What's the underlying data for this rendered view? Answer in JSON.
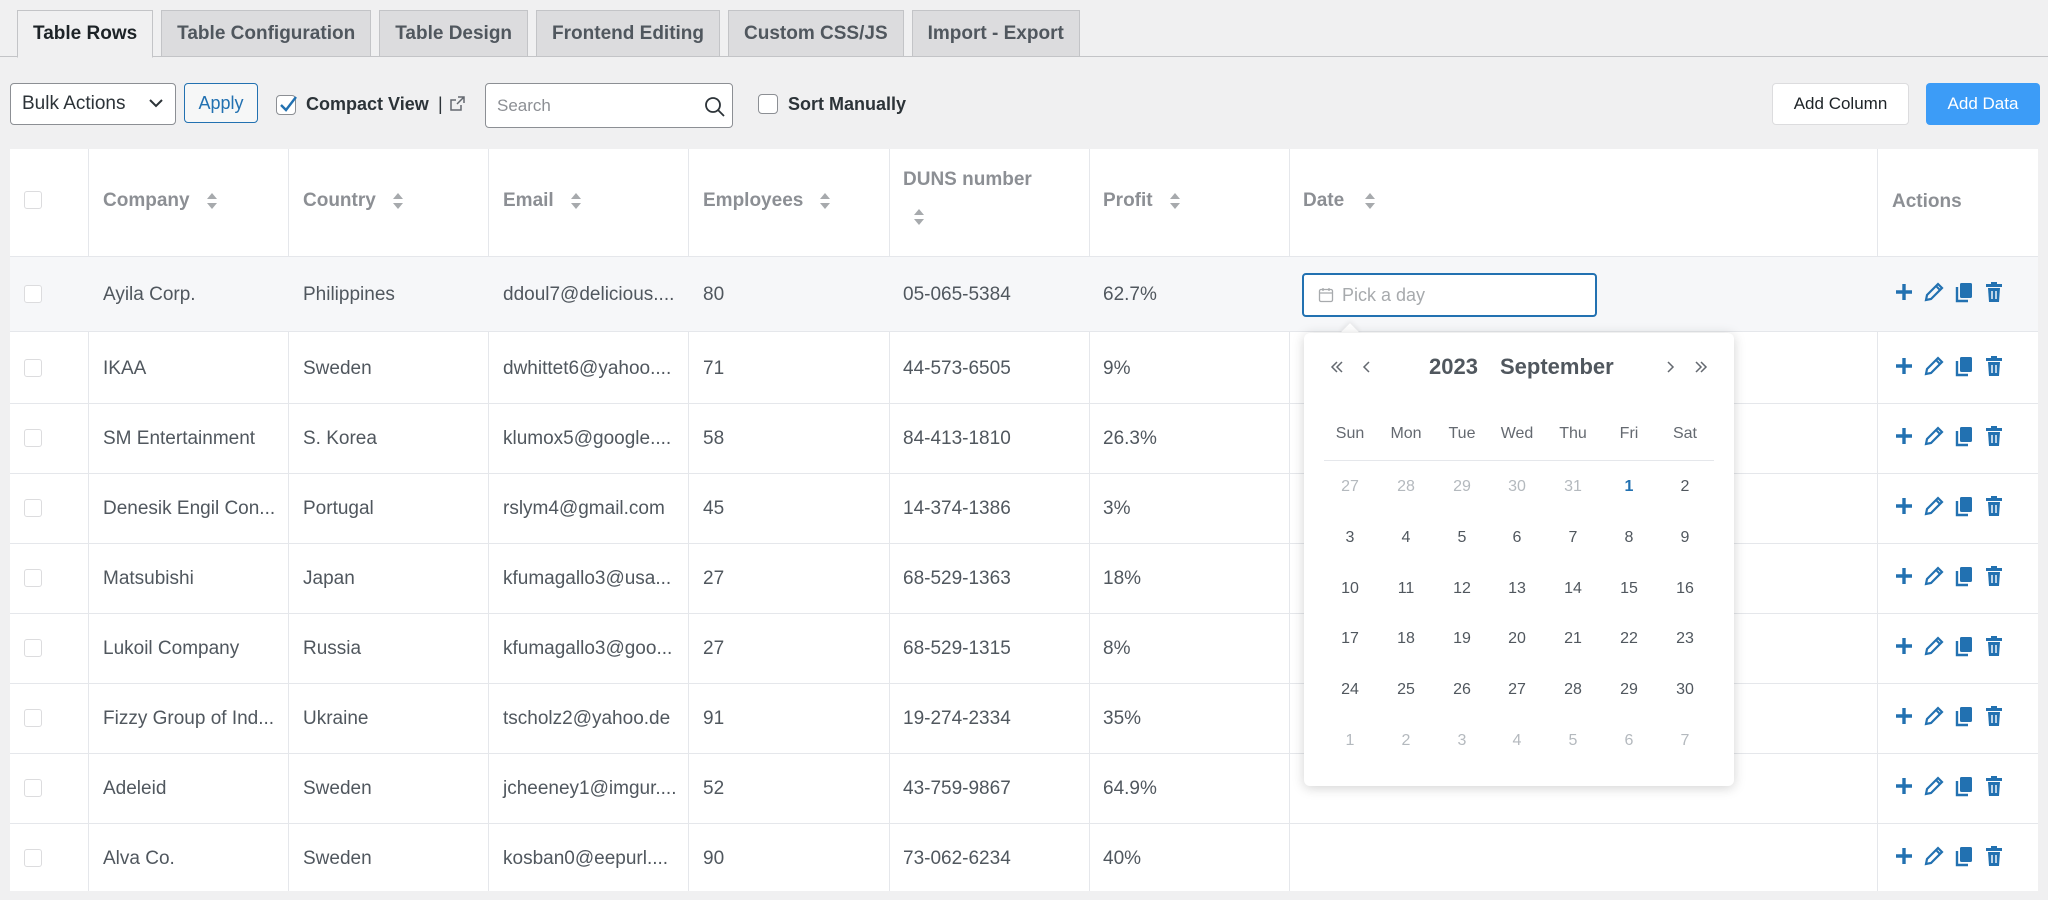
{
  "tabs": [
    {
      "label": "Table Rows"
    },
    {
      "label": "Table Configuration"
    },
    {
      "label": "Table Design"
    },
    {
      "label": "Frontend Editing"
    },
    {
      "label": "Custom CSS/JS"
    },
    {
      "label": "Import - Export"
    }
  ],
  "toolbar": {
    "bulk_actions": "Bulk Actions",
    "apply": "Apply",
    "compact_view": "Compact View",
    "separator": "|",
    "search_placeholder": "Search",
    "sort_manually": "Sort Manually",
    "add_column": "Add Column",
    "add_data": "Add Data"
  },
  "table": {
    "headers": {
      "company": "Company",
      "country": "Country",
      "email": "Email",
      "employees": "Employees",
      "duns": "DUNS number",
      "profit": "Profit",
      "date": "Date",
      "actions": "Actions"
    },
    "rows": [
      {
        "company": "Ayila Corp.",
        "country": "Philippines",
        "email": "ddoul7@delicious....",
        "employees": "80",
        "duns": "05-065-5384",
        "profit": "62.7%"
      },
      {
        "company": "IKAA",
        "country": "Sweden",
        "email": "dwhittet6@yahoo....",
        "employees": "71",
        "duns": "44-573-6505",
        "profit": "9%"
      },
      {
        "company": "SM Entertainment",
        "country": "S. Korea",
        "email": "klumox5@google....",
        "employees": "58",
        "duns": "84-413-1810",
        "profit": "26.3%"
      },
      {
        "company": "Denesik Engil Con...",
        "country": "Portugal",
        "email": "rslym4@gmail.com",
        "employees": "45",
        "duns": "14-374-1386",
        "profit": "3%"
      },
      {
        "company": "Matsubishi",
        "country": "Japan",
        "email": "kfumagallo3@usa...",
        "employees": "27",
        "duns": "68-529-1363",
        "profit": "18%"
      },
      {
        "company": "Lukoil Company",
        "country": "Russia",
        "email": "kfumagallo3@goo...",
        "employees": "27",
        "duns": "68-529-1315",
        "profit": "8%"
      },
      {
        "company": "Fizzy Group of Ind...",
        "country": "Ukraine",
        "email": "tscholz2@yahoo.de",
        "employees": "91",
        "duns": "19-274-2334",
        "profit": "35%"
      },
      {
        "company": "Adeleid",
        "country": "Sweden",
        "email": "jcheeney1@imgur....",
        "employees": "52",
        "duns": "43-759-9867",
        "profit": "64.9%"
      },
      {
        "company": "Alva Co.",
        "country": "Sweden",
        "email": "kosban0@eepurl....",
        "employees": "90",
        "duns": "73-062-6234",
        "profit": "40%"
      }
    ],
    "date_placeholder": "Pick a day"
  },
  "calendar": {
    "year": "2023",
    "month": "September",
    "weekdays": [
      "Sun",
      "Mon",
      "Tue",
      "Wed",
      "Thu",
      "Fri",
      "Sat"
    ],
    "weeks": [
      [
        "27",
        "28",
        "29",
        "30",
        "31",
        "1",
        "2"
      ],
      [
        "3",
        "4",
        "5",
        "6",
        "7",
        "8",
        "9"
      ],
      [
        "10",
        "11",
        "12",
        "13",
        "14",
        "15",
        "16"
      ],
      [
        "17",
        "18",
        "19",
        "20",
        "21",
        "22",
        "23"
      ],
      [
        "24",
        "25",
        "26",
        "27",
        "28",
        "29",
        "30"
      ],
      [
        "1",
        "2",
        "3",
        "4",
        "5",
        "6",
        "7"
      ]
    ],
    "today": "1"
  },
  "colors": {
    "accent": "#2271b1",
    "primary_button": "#3c9cf7",
    "action_icons": "#2271b1"
  },
  "icons": [
    "chevron-down-icon",
    "checkmark-icon",
    "external-link-icon",
    "search-icon",
    "sort-icon",
    "calendar-icon",
    "plus-icon",
    "pencil-icon",
    "copy-icon",
    "trash-icon",
    "double-chevron-left-icon",
    "chevron-left-icon",
    "chevron-right-icon",
    "double-chevron-right-icon"
  ]
}
